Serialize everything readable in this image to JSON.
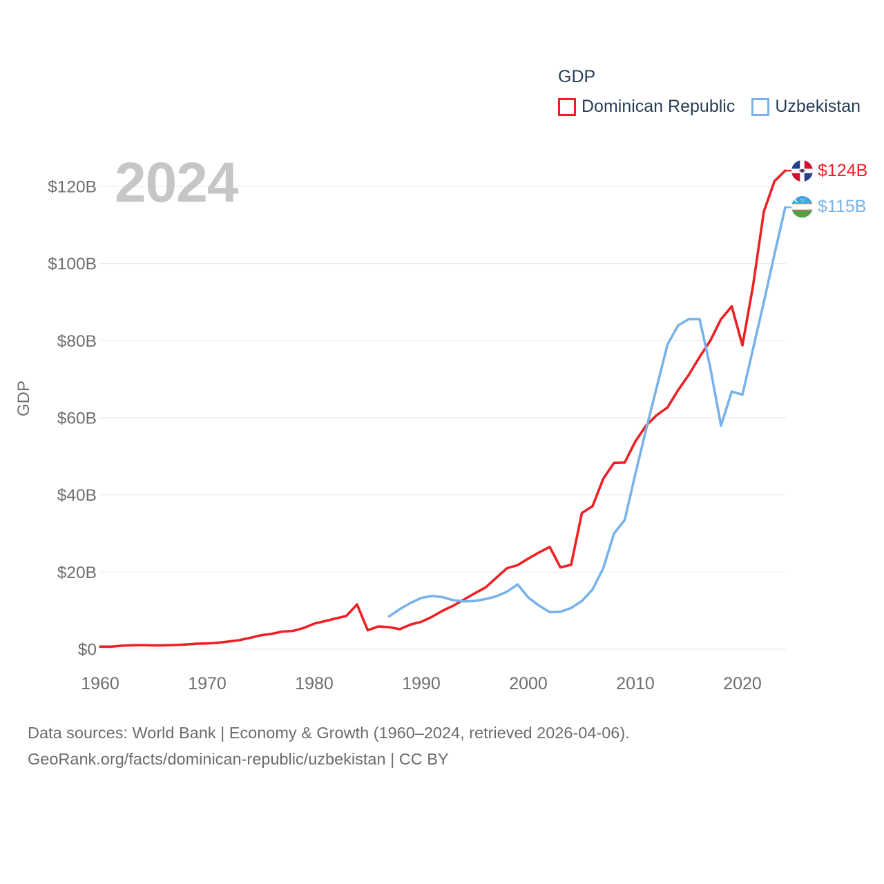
{
  "legend": {
    "title": "GDP",
    "items": [
      {
        "label": "Dominican Republic",
        "color": "#ee2024"
      },
      {
        "label": "Uzbekistan",
        "color": "#77b3ea"
      }
    ]
  },
  "watermark": "2024",
  "y_axis": {
    "title": "GDP",
    "ticks": [
      {
        "value": 0,
        "label": "$0"
      },
      {
        "value": 20,
        "label": "$20B"
      },
      {
        "value": 40,
        "label": "$40B"
      },
      {
        "value": 60,
        "label": "$60B"
      },
      {
        "value": 80,
        "label": "$80B"
      },
      {
        "value": 100,
        "label": "$100B"
      },
      {
        "value": 120,
        "label": "$120B"
      }
    ]
  },
  "x_axis": {
    "ticks": [
      {
        "value": 1960,
        "label": "1960"
      },
      {
        "value": 1970,
        "label": "1970"
      },
      {
        "value": 1980,
        "label": "1980"
      },
      {
        "value": 1990,
        "label": "1990"
      },
      {
        "value": 2000,
        "label": "2000"
      },
      {
        "value": 2010,
        "label": "2010"
      },
      {
        "value": 2020,
        "label": "2020"
      }
    ]
  },
  "end_labels": [
    {
      "series": "Dominican Republic",
      "label": "$124B",
      "color": "#ee2024",
      "flag": "dominican-republic-flag"
    },
    {
      "series": "Uzbekistan",
      "label": "$115B",
      "color": "#77b3ea",
      "flag": "uzbekistan-flag"
    }
  ],
  "footer": {
    "line1": "Data sources: World Bank | Economy & Growth (1960–2024, retrieved 2026-04-06).",
    "line2": "GeoRank.org/facts/dominican-republic/uzbekistan | CC BY"
  },
  "chart_data": {
    "type": "line",
    "title": "GDP",
    "xlabel": "",
    "ylabel": "GDP",
    "x_range": [
      1960,
      2024
    ],
    "ylim": [
      0,
      120
    ],
    "grid": "horizontal",
    "legend_position": "top-right",
    "units": "billions USD",
    "series": [
      {
        "name": "Dominican Republic",
        "color": "#ee2024",
        "end_label": "$124B",
        "x": [
          1960,
          1961,
          1962,
          1963,
          1964,
          1965,
          1966,
          1967,
          1968,
          1969,
          1970,
          1971,
          1972,
          1973,
          1974,
          1975,
          1976,
          1977,
          1978,
          1979,
          1980,
          1981,
          1982,
          1983,
          1984,
          1985,
          1986,
          1987,
          1988,
          1989,
          1990,
          1991,
          1992,
          1993,
          1994,
          1995,
          1996,
          1997,
          1998,
          1999,
          2000,
          2001,
          2002,
          2003,
          2004,
          2005,
          2006,
          2007,
          2008,
          2009,
          2010,
          2011,
          2012,
          2013,
          2014,
          2015,
          2016,
          2017,
          2018,
          2019,
          2020,
          2021,
          2022,
          2023,
          2024
        ],
        "values": [
          0.67,
          0.67,
          0.9,
          1.02,
          1.05,
          0.97,
          1.02,
          1.1,
          1.21,
          1.41,
          1.49,
          1.67,
          1.99,
          2.35,
          2.93,
          3.6,
          3.95,
          4.56,
          4.73,
          5.5,
          6.63,
          7.27,
          7.97,
          8.62,
          11.6,
          4.9,
          5.9,
          5.7,
          5.2,
          6.4,
          7.1,
          8.4,
          10.0,
          11.3,
          12.9,
          14.5,
          16.0,
          18.5,
          21.0,
          21.8,
          23.5,
          25.1,
          26.5,
          21.2,
          21.9,
          35.3,
          37.1,
          44.2,
          48.3,
          48.4,
          53.9,
          58.0,
          60.7,
          62.7,
          67.2,
          71.2,
          75.8,
          80.0,
          85.6,
          88.9,
          78.8,
          94.4,
          113.5,
          121.4,
          124.1
        ]
      },
      {
        "name": "Uzbekistan",
        "color": "#77b3ea",
        "end_label": "$115B",
        "x": [
          1987,
          1988,
          1989,
          1990,
          1991,
          1992,
          1993,
          1994,
          1995,
          1996,
          1997,
          1998,
          1999,
          2000,
          2001,
          2002,
          2003,
          2004,
          2005,
          2006,
          2007,
          2008,
          2009,
          2010,
          2011,
          2012,
          2013,
          2014,
          2015,
          2016,
          2017,
          2018,
          2019,
          2020,
          2021,
          2022,
          2023,
          2024
        ],
        "values": [
          8.5,
          10.4,
          12.0,
          13.3,
          13.8,
          13.5,
          12.7,
          12.4,
          12.5,
          13.0,
          13.7,
          14.9,
          16.8,
          13.4,
          11.3,
          9.6,
          9.7,
          10.7,
          12.5,
          15.5,
          21.0,
          30.0,
          33.5,
          45.5,
          57.0,
          68.0,
          79.0,
          84.0,
          85.6,
          85.6,
          73.0,
          58.0,
          66.8,
          66.0,
          78.0,
          90.0,
          102.5,
          114.6
        ]
      }
    ]
  }
}
